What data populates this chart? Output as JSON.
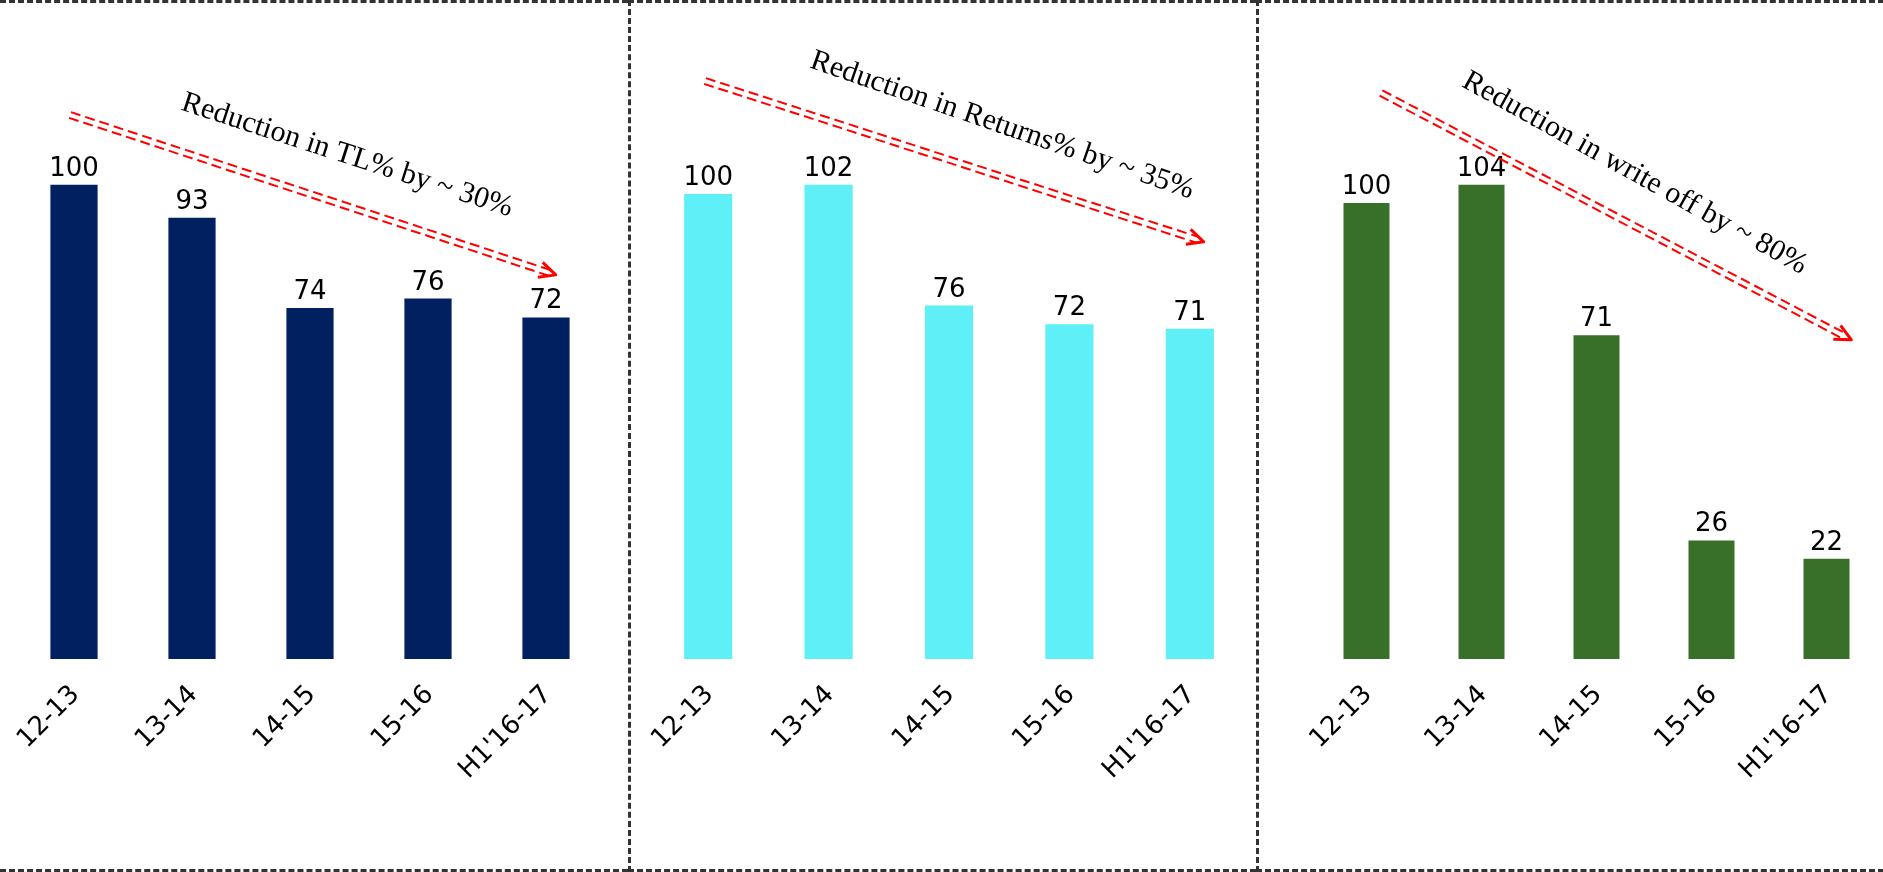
{
  "chart_data": [
    {
      "type": "bar",
      "categories": [
        "12-13",
        "13-14",
        "14-15",
        "15-16",
        "H1'16-17"
      ],
      "values": [
        100,
        93,
        74,
        76,
        72
      ],
      "color": "#002060",
      "data_labels": true,
      "annotations": [
        "Reduction in TL% by ~ 30%"
      ]
    },
    {
      "type": "bar",
      "categories": [
        "12-13",
        "13-14",
        "14-15",
        "15-16",
        "H1'16-17"
      ],
      "values": [
        100,
        102,
        76,
        72,
        71
      ],
      "color": "#5ef0f6",
      "data_labels": true,
      "annotations": [
        "Reduction in Returns% by ~ 35%"
      ]
    },
    {
      "type": "bar",
      "categories": [
        "12-13",
        "13-14",
        "14-15",
        "15-16",
        "H1'16-17"
      ],
      "values": [
        100,
        104,
        71,
        26,
        22
      ],
      "color": "#38702a",
      "data_labels": true,
      "annotations": [
        "Reduction in write off by ~ 80%"
      ]
    }
  ]
}
